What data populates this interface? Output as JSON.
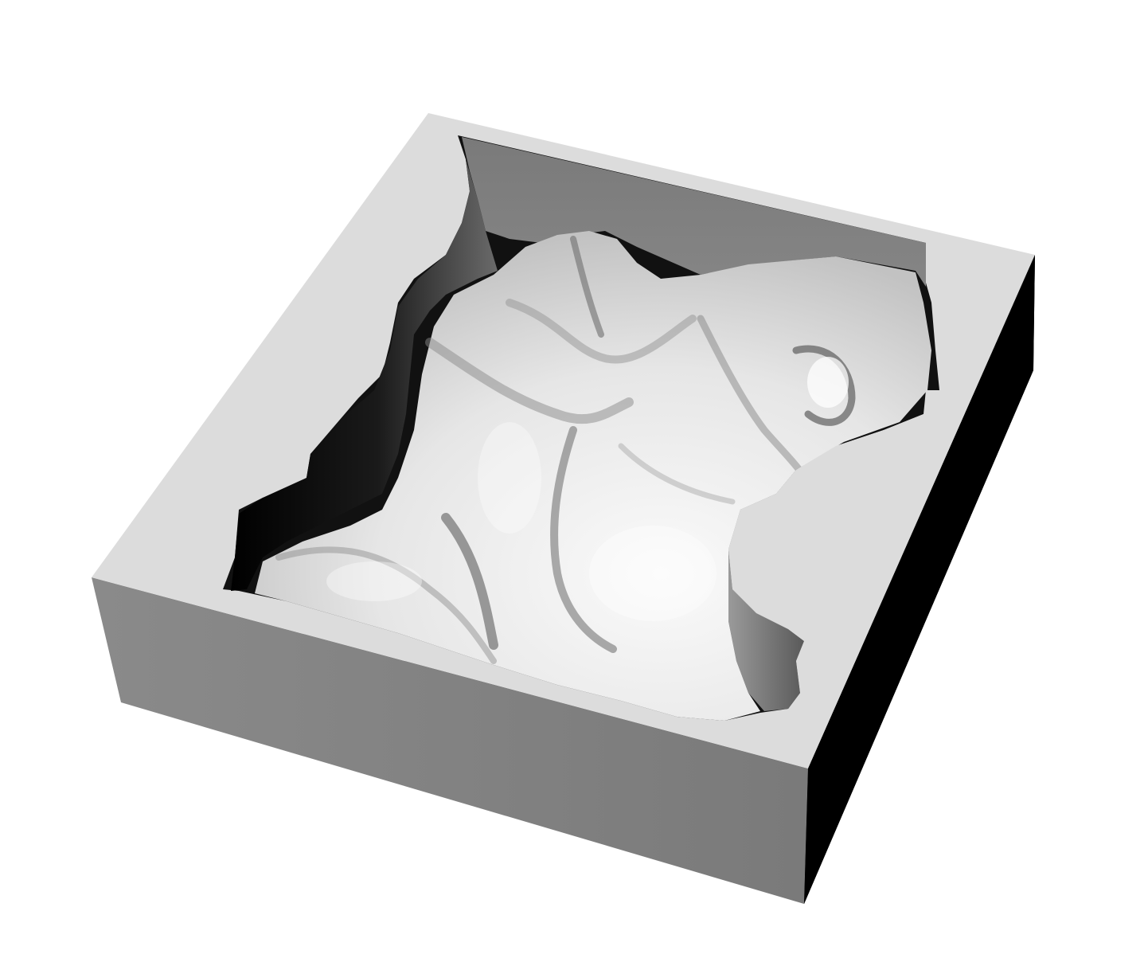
{
  "scene": {
    "subject": "3d-rendered-block-with-carved-terrain-cavity",
    "palette": {
      "background": "#ffffff",
      "top_face": "#dcdcdc",
      "front_face": "#808080",
      "side_face": "#000000",
      "inner_wall": "#7f7f7f",
      "terrain_light": "#f4f4f4",
      "terrain_mid": "#c8c8c8",
      "terrain_dark": "#2a2a2a"
    }
  }
}
